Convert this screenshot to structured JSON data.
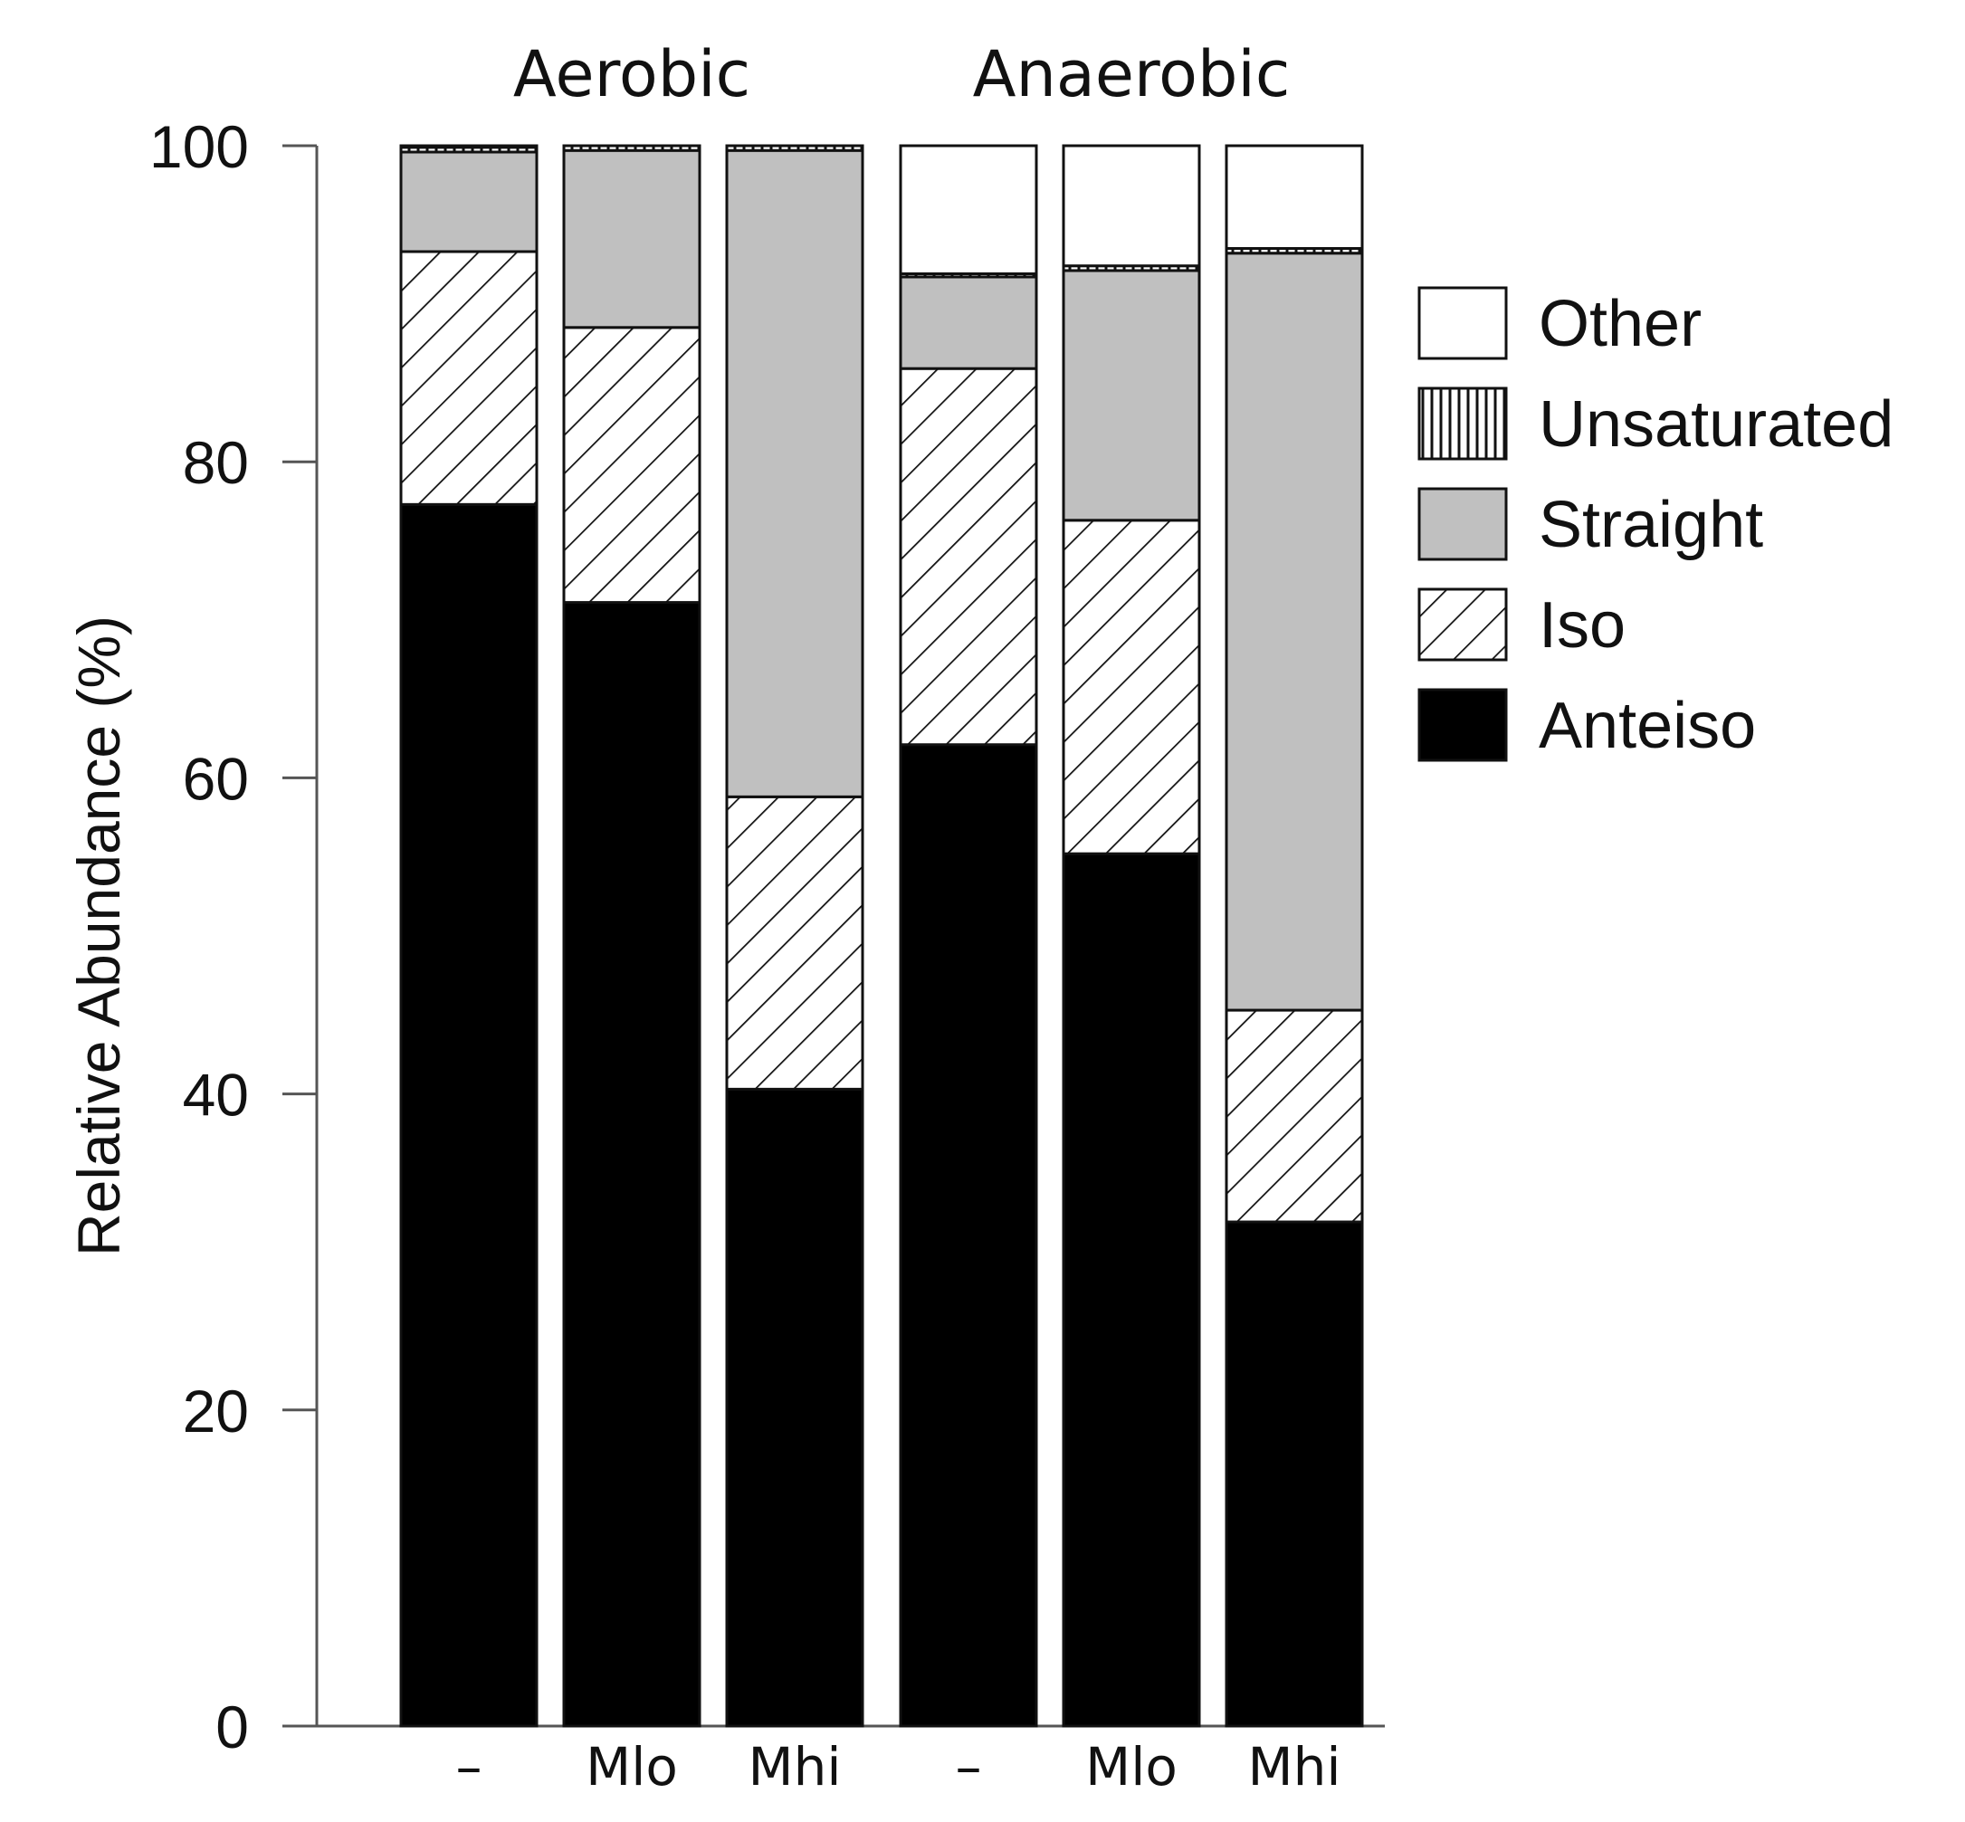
{
  "chart_data": {
    "type": "bar",
    "stacked": true,
    "groups": [
      {
        "name": "Aerobic",
        "categories": [
          "–",
          "Mlo",
          "Mhi"
        ]
      },
      {
        "name": "Anaerobic",
        "categories": [
          "–",
          "Mlo",
          "Mhi"
        ]
      }
    ],
    "categories": [
      "–",
      "Mlo",
      "Mhi",
      "–",
      "Mlo",
      "Mhi"
    ],
    "series": [
      {
        "name": "Anteiso",
        "fill": "black",
        "values": [
          77.3,
          71.1,
          40.3,
          62.1,
          55.2,
          31.9
        ]
      },
      {
        "name": "Iso",
        "fill": "diagonal-hatch",
        "values": [
          16.0,
          17.4,
          18.5,
          23.8,
          21.1,
          13.4
        ]
      },
      {
        "name": "Straight",
        "fill": "gray",
        "values": [
          6.3,
          11.2,
          40.9,
          5.8,
          15.8,
          47.9
        ]
      },
      {
        "name": "Unsaturated",
        "fill": "vertical-hatch",
        "values": [
          0.3,
          0.3,
          0.3,
          0.2,
          0.3,
          0.3
        ]
      },
      {
        "name": "Other",
        "fill": "white",
        "values": [
          0.1,
          0.0,
          0.0,
          8.1,
          7.6,
          6.5
        ]
      }
    ],
    "legend_order": [
      "Other",
      "Unsaturated",
      "Straight",
      "Iso",
      "Anteiso"
    ],
    "ylabel": "Relative Abundance (%)",
    "xlabel": "",
    "ylim": [
      0,
      100
    ],
    "yticks": [
      0,
      20,
      40,
      60,
      80,
      100
    ],
    "legend_position": "right",
    "grid": false
  },
  "colors": {
    "anteiso": "#000000",
    "straight": "#c0c0c0",
    "other": "#ffffff",
    "outline": "#111111",
    "axis": "#555555"
  }
}
